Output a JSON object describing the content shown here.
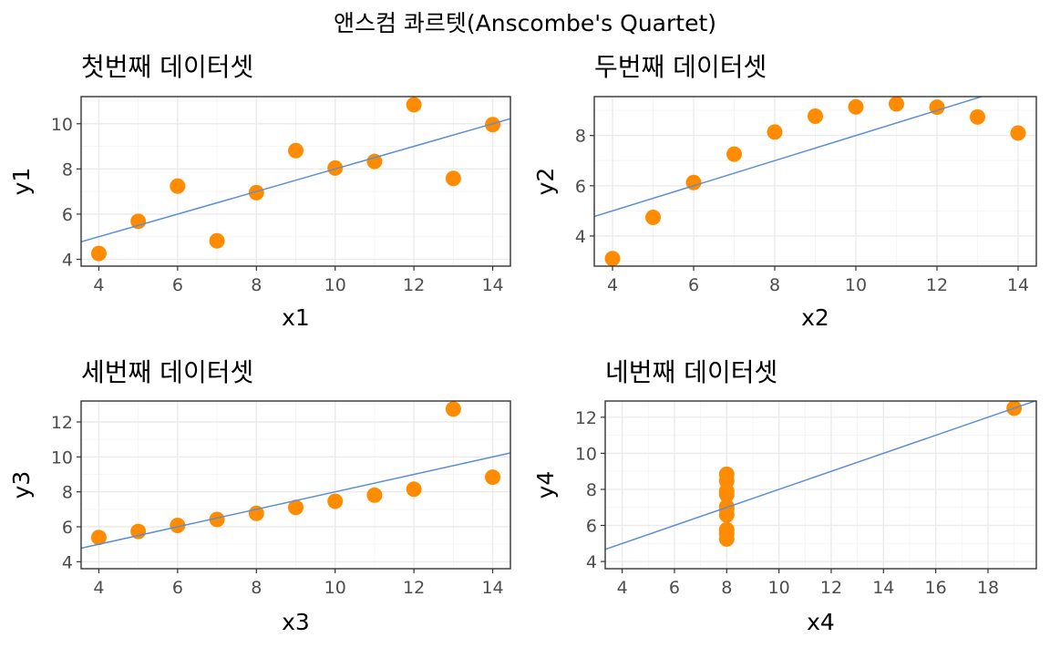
{
  "figure_title": "앤스컴 콰르텟(Anscombe's Quartet)",
  "colors": {
    "point": "#ff8c00",
    "regression_line": "#5b8ed9",
    "panel_border": "#333333",
    "grid_major": "#ebebeb",
    "grid_minor": "#f5f5f5",
    "tick_label": "#4d4d4d"
  },
  "chart_data": [
    {
      "type": "scatter",
      "title": "첫번째 데이터셋",
      "xlabel": "x1",
      "ylabel": "y1",
      "xlim": [
        3.55,
        14.45
      ],
      "ylim": [
        3.7,
        11.2
      ],
      "xticks": [
        4,
        6,
        8,
        10,
        12,
        14
      ],
      "yticks": [
        4,
        6,
        8,
        10
      ],
      "x": [
        10,
        8,
        13,
        9,
        11,
        14,
        6,
        4,
        12,
        7,
        5
      ],
      "y": [
        8.04,
        6.95,
        7.58,
        8.81,
        8.33,
        9.96,
        7.24,
        4.26,
        10.84,
        4.82,
        5.68
      ],
      "regression": {
        "intercept": 3.0,
        "slope": 0.5
      },
      "grid": true,
      "legend": "none"
    },
    {
      "type": "scatter",
      "title": "두번째 데이터셋",
      "xlabel": "x2",
      "ylabel": "y2",
      "xlim": [
        3.55,
        14.45
      ],
      "ylim": [
        2.8,
        9.55
      ],
      "xticks": [
        4,
        6,
        8,
        10,
        12,
        14
      ],
      "yticks": [
        4,
        6,
        8
      ],
      "x": [
        10,
        8,
        13,
        9,
        11,
        14,
        6,
        4,
        12,
        7,
        5
      ],
      "y": [
        9.14,
        8.14,
        8.74,
        8.77,
        9.26,
        8.1,
        6.13,
        3.1,
        9.13,
        7.26,
        4.74
      ],
      "regression": {
        "intercept": 3.0,
        "slope": 0.5
      },
      "grid": true,
      "legend": "none"
    },
    {
      "type": "scatter",
      "title": "세번째 데이터셋",
      "xlabel": "x3",
      "ylabel": "y3",
      "xlim": [
        3.55,
        14.45
      ],
      "ylim": [
        3.6,
        13.2
      ],
      "xticks": [
        4,
        6,
        8,
        10,
        12,
        14
      ],
      "yticks": [
        4,
        6,
        8,
        10,
        12
      ],
      "x": [
        10,
        8,
        13,
        9,
        11,
        14,
        6,
        4,
        12,
        7,
        5
      ],
      "y": [
        7.46,
        6.77,
        12.74,
        7.11,
        7.81,
        8.84,
        6.08,
        5.39,
        8.15,
        6.42,
        5.73
      ],
      "regression": {
        "intercept": 3.0,
        "slope": 0.5
      },
      "grid": true,
      "legend": "none"
    },
    {
      "type": "scatter",
      "title": "네번째 데이터셋",
      "xlabel": "x4",
      "ylabel": "y4",
      "xlim": [
        3.35,
        19.85
      ],
      "ylim": [
        3.6,
        12.9
      ],
      "xticks": [
        4,
        6,
        8,
        10,
        12,
        14,
        16,
        18
      ],
      "yticks": [
        4,
        6,
        8,
        10,
        12
      ],
      "x": [
        8,
        8,
        8,
        8,
        8,
        8,
        8,
        19,
        8,
        8,
        8
      ],
      "y": [
        6.58,
        5.76,
        7.71,
        8.84,
        8.47,
        7.04,
        5.25,
        12.5,
        5.56,
        7.91,
        6.89
      ],
      "regression": {
        "intercept": 3.0,
        "slope": 0.5
      },
      "grid": true,
      "legend": "none"
    }
  ]
}
